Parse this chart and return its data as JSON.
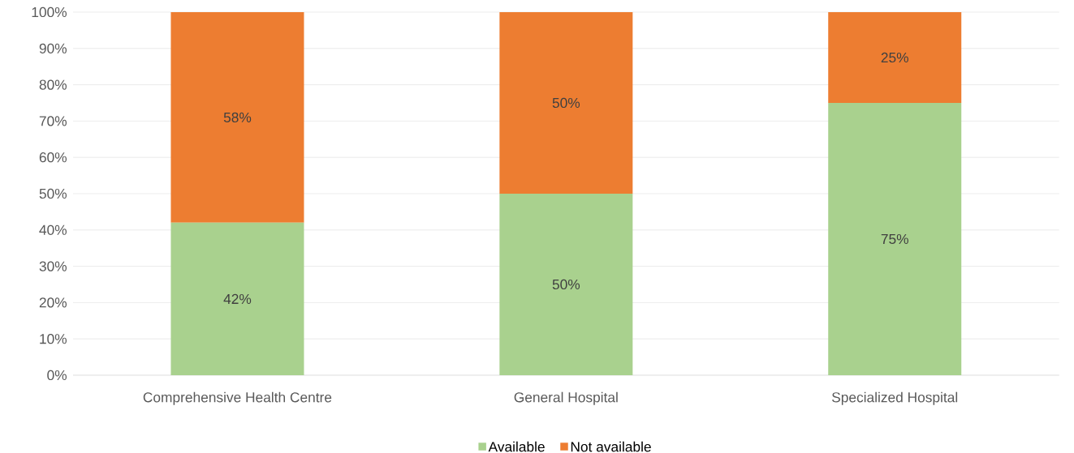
{
  "chart_data": {
    "type": "bar",
    "stacked": true,
    "categories": [
      "Comprehensive Health Centre",
      "General Hospital",
      "Specialized Hospital"
    ],
    "series": [
      {
        "name": "Available",
        "color": "#a9d18e",
        "values": [
          42,
          50,
          75
        ],
        "value_labels": [
          "42%",
          "50%",
          "75%"
        ]
      },
      {
        "name": "Not available",
        "color": "#ed7d31",
        "values": [
          58,
          50,
          25
        ],
        "value_labels": [
          "58%",
          "50%",
          "25%"
        ]
      }
    ],
    "ylim": [
      0,
      100
    ],
    "yticks": [
      {
        "value": 0,
        "label": "0%"
      },
      {
        "value": 10,
        "label": "10%"
      },
      {
        "value": 20,
        "label": "20%"
      },
      {
        "value": 30,
        "label": "30%"
      },
      {
        "value": 40,
        "label": "40%"
      },
      {
        "value": 50,
        "label": "50%"
      },
      {
        "value": 60,
        "label": "60%"
      },
      {
        "value": 70,
        "label": "70%"
      },
      {
        "value": 80,
        "label": "80%"
      },
      {
        "value": 90,
        "label": "90%"
      },
      {
        "value": 100,
        "label": "100%"
      }
    ],
    "grid": "y",
    "legend": "bottom"
  }
}
